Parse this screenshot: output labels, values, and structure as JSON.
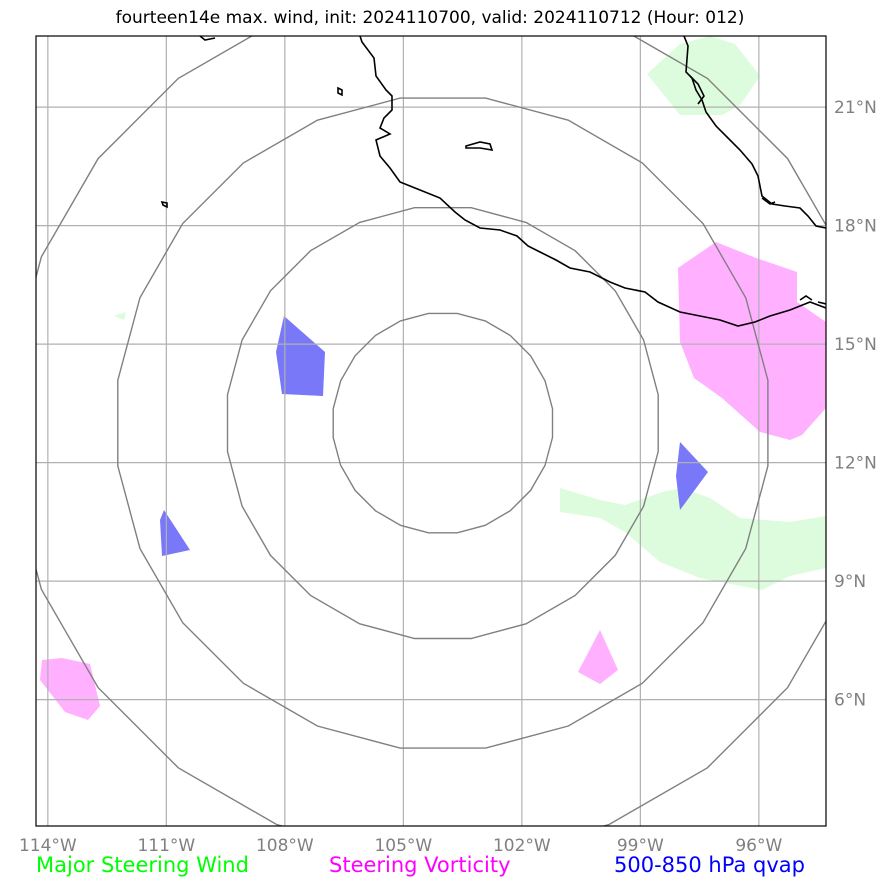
{
  "title": "fourteen14e max. wind, init: 2024110700, valid: 2024110712 (Hour: 012)",
  "map": {
    "lon_range": [
      -114.3,
      -94.3
    ],
    "lat_range": [
      2.8,
      22.8
    ],
    "lon_ticks": [
      {
        "value": -114,
        "label": "114°W"
      },
      {
        "value": -111,
        "label": "111°W"
      },
      {
        "value": -108,
        "label": "108°W"
      },
      {
        "value": -105,
        "label": "105°W"
      },
      {
        "value": -102,
        "label": "102°W"
      },
      {
        "value": -99,
        "label": "99°W"
      },
      {
        "value": -96,
        "label": "96°W"
      }
    ],
    "lat_ticks": [
      {
        "value": 21,
        "label": "21°N"
      },
      {
        "value": 18,
        "label": "18°N"
      },
      {
        "value": 15,
        "label": "15°N"
      },
      {
        "value": 12,
        "label": "12°N"
      },
      {
        "value": 9,
        "label": "9°N"
      },
      {
        "value": 6,
        "label": "6°N"
      }
    ],
    "gridlines": true,
    "range_rings_center": {
      "lon": -104,
      "lat": 13
    },
    "range_ring_radii_deg": [
      2.8,
      5.5,
      8.3,
      11
    ]
  },
  "legend": {
    "items": [
      {
        "label": "Major Steering Wind",
        "color": "#00ff00"
      },
      {
        "label": "Steering Vorticity",
        "color": "#ff00ff"
      },
      {
        "label": "500-850 hPa qvap",
        "color": "#0000ff"
      }
    ]
  },
  "colors": {
    "steering_wind_fill": "#ddfcdd",
    "vorticity_fill": "#ffb0ff",
    "qvap_fill": "#7878f8",
    "rings": "#808080",
    "grid": "#b0b0b0",
    "coast": "#000000"
  }
}
